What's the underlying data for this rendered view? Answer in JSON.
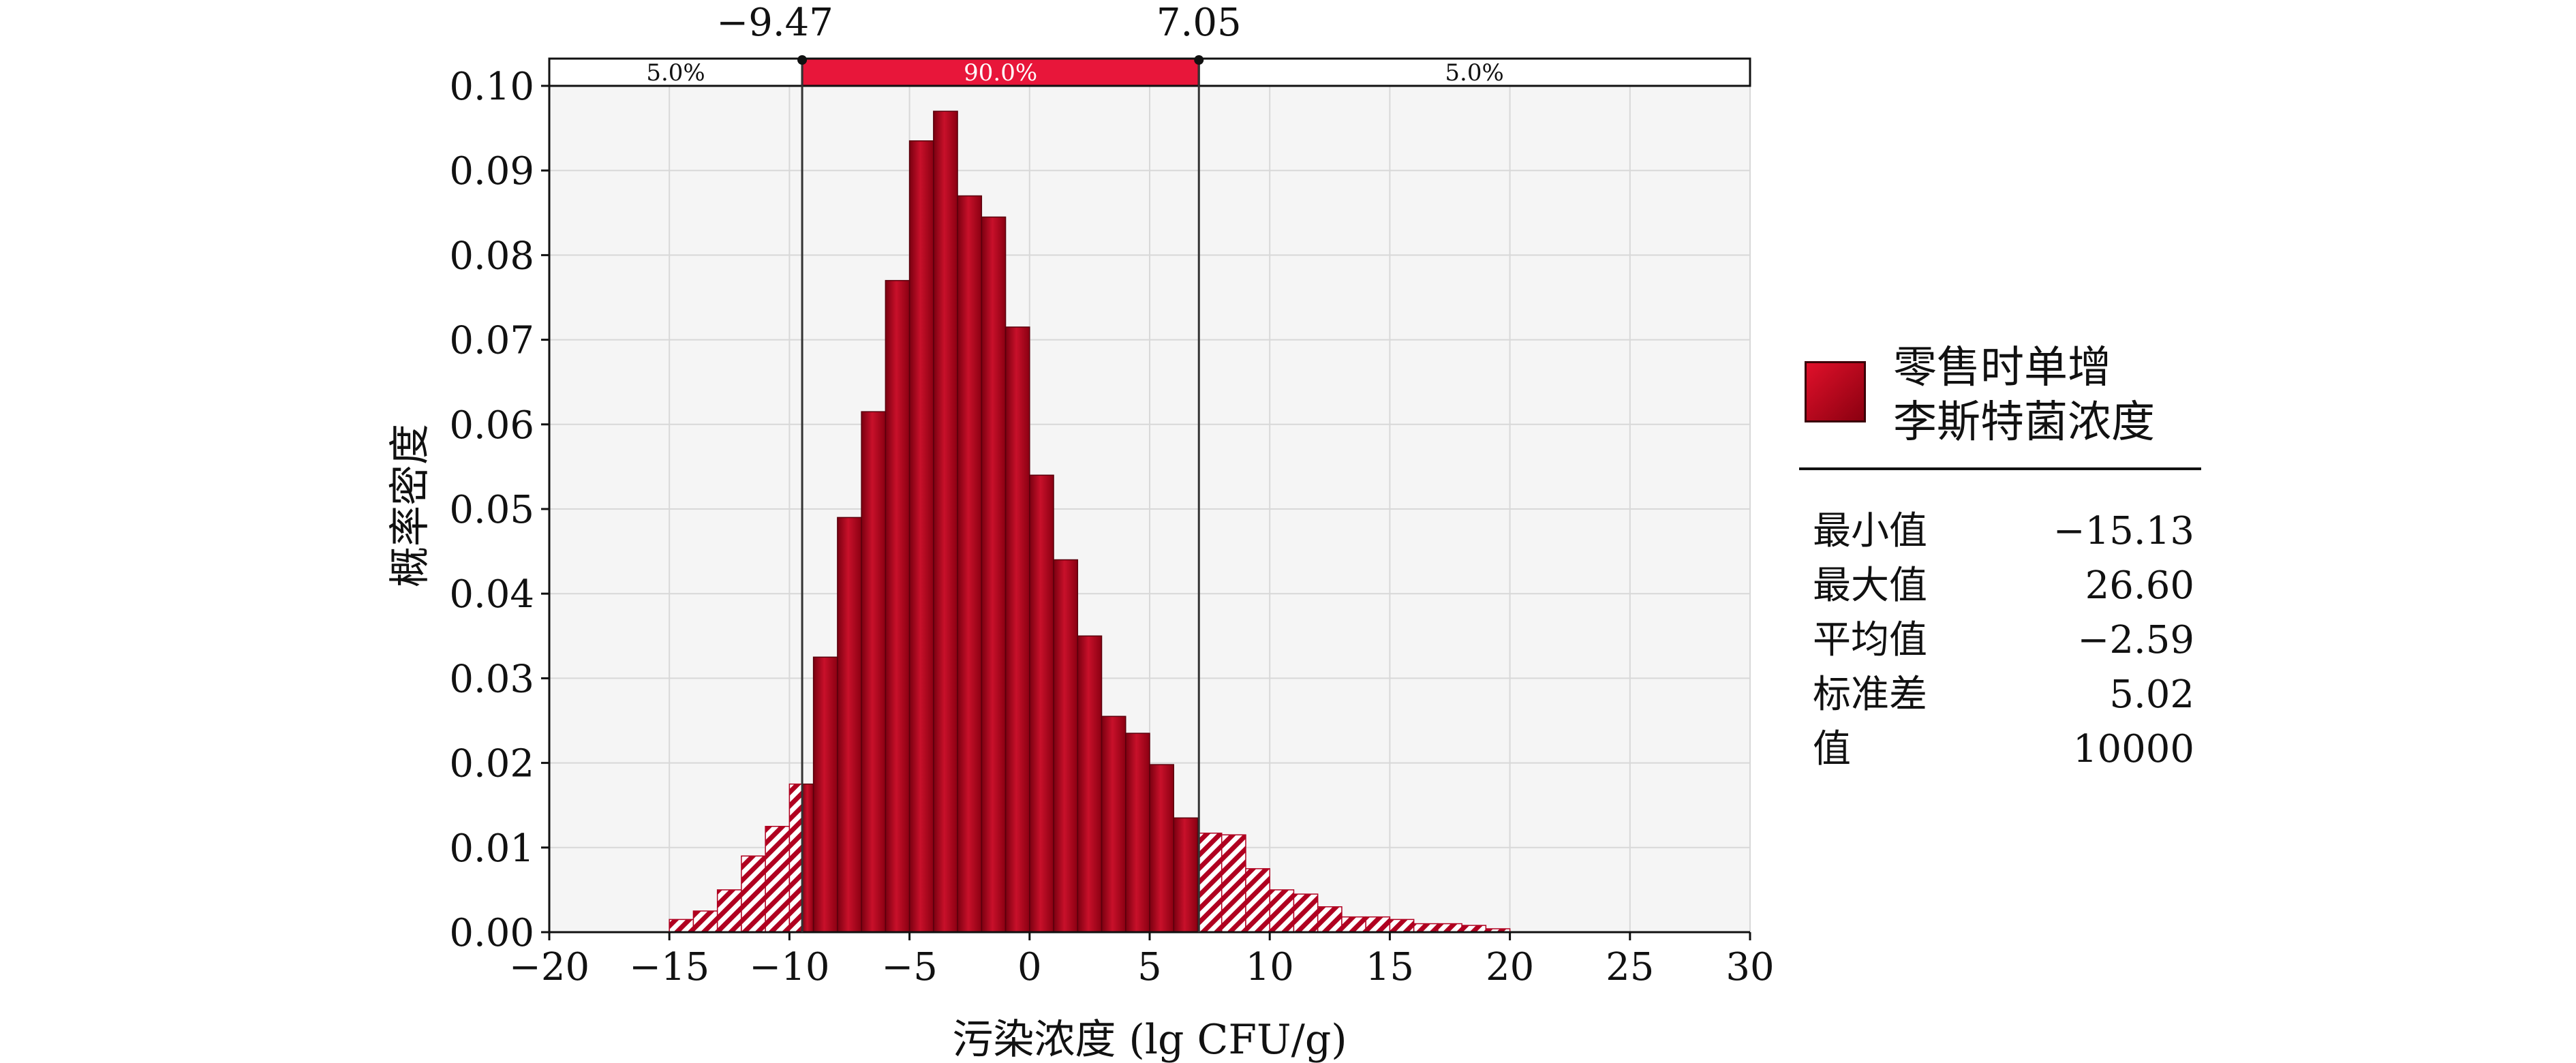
{
  "chart_data": {
    "type": "bar",
    "subtype": "histogram",
    "xlabel": "污染浓度 (lg CFU/g)",
    "ylabel": "概率密度",
    "xlim": [
      -20,
      30
    ],
    "ylim": [
      0,
      0.1
    ],
    "x_ticks": [
      "−20",
      "−15",
      "−10",
      "−5",
      "0",
      "5",
      "10",
      "15",
      "20",
      "25",
      "30"
    ],
    "y_ticks": [
      "0.00",
      "0.01",
      "0.02",
      "0.03",
      "0.04",
      "0.05",
      "0.06",
      "0.07",
      "0.08",
      "0.09",
      "0.10"
    ],
    "grid": true,
    "bin_width": 1.0,
    "bins_start": [
      -15,
      -14,
      -13,
      -12,
      -11,
      -10,
      -9,
      -8,
      -7,
      -6,
      -5,
      -4,
      -3,
      -2,
      -1,
      0,
      1,
      2,
      3,
      4,
      5,
      6,
      7,
      8,
      9,
      10,
      11,
      12,
      13,
      14,
      15,
      16,
      17,
      18,
      19
    ],
    "values": [
      0.0015,
      0.0025,
      0.005,
      0.009,
      0.0125,
      0.0175,
      0.0325,
      0.049,
      0.0615,
      0.077,
      0.0935,
      0.097,
      0.087,
      0.0845,
      0.0715,
      0.054,
      0.044,
      0.035,
      0.0255,
      0.0235,
      0.0198,
      0.0135,
      0.0117,
      0.0115,
      0.0075,
      0.005,
      0.0045,
      0.003,
      0.0018,
      0.0018,
      0.0015,
      0.001,
      0.001,
      0.0008,
      0.0004
    ],
    "series_name": "零售时单增\n李斯特菌浓度",
    "markers": {
      "left": -9.47,
      "right": 7.05,
      "left_label": "−9.47",
      "right_label": "7.05",
      "segments": [
        "5.0%",
        "90.0%",
        "5.0%"
      ]
    },
    "colors": {
      "bar_fill_dark": "#7a0010",
      "bar_fill_light": "#d8102a",
      "bar_highlight": "#e8163a",
      "hatch": "#b00020",
      "plot_bg": "#f5f5f5",
      "grid": "#d8d8d8"
    }
  },
  "legend": {
    "line1": "零售时单增",
    "line2": "李斯特菌浓度"
  },
  "stats": [
    {
      "label": "最小值",
      "value": "−15.13"
    },
    {
      "label": "最大值",
      "value": "26.60"
    },
    {
      "label": "平均值",
      "value": "−2.59"
    },
    {
      "label": "标准差",
      "value": "5.02"
    },
    {
      "label": "值",
      "value": "10000"
    }
  ]
}
